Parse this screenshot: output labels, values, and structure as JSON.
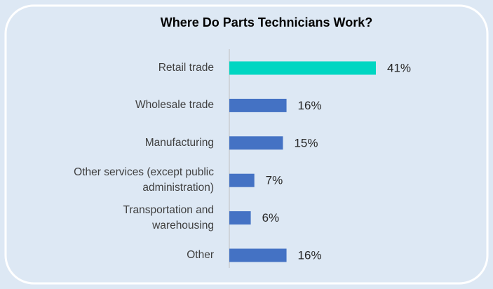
{
  "chart_data": {
    "type": "bar",
    "orientation": "horizontal",
    "title": "Where Do Parts Technicians Work?",
    "categories": [
      "Retail trade",
      "Wholesale trade",
      "Manufacturing",
      "Other services (except public\nadministration)",
      "Transportation and\nwarehousing",
      "Other"
    ],
    "values": [
      41,
      16,
      15,
      7,
      6,
      16
    ],
    "value_labels": [
      "41%",
      "16%",
      "15%",
      "7%",
      "6%",
      "16%"
    ],
    "colors": [
      "#00d6c2",
      "#4472c4",
      "#4472c4",
      "#4472c4",
      "#4472c4",
      "#4472c4"
    ]
  }
}
